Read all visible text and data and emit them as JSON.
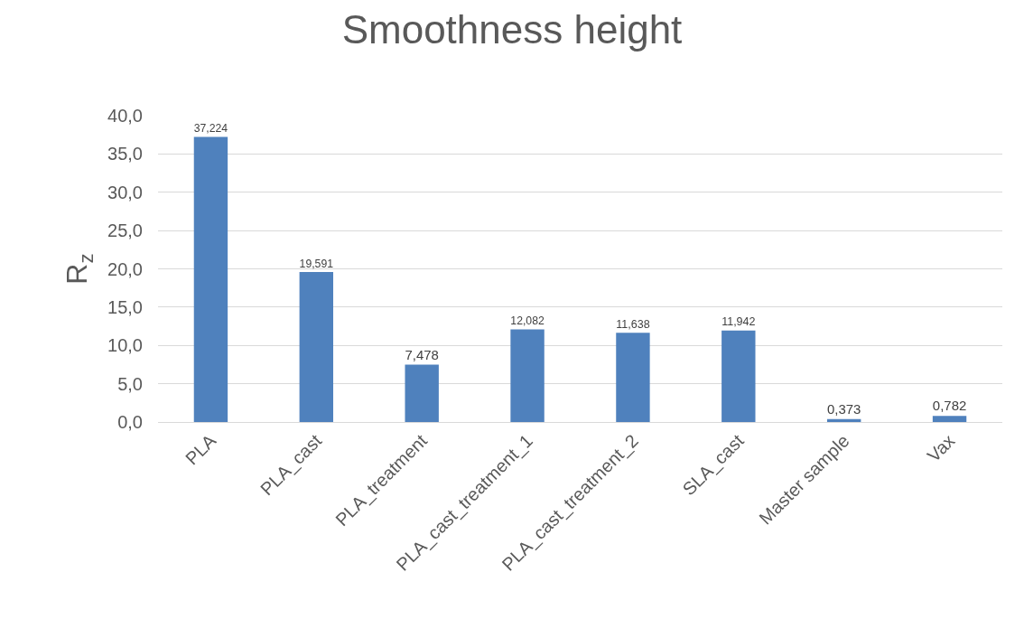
{
  "chart_data": {
    "type": "bar",
    "title": "Smoothness height",
    "ylabel": "R$_{z}$",
    "categories": [
      "PLA",
      "PLA_cast",
      "PLA_treatment",
      "PLA_cast_treatment_1",
      "PLA_cast_treatment_2",
      "SLA_cast",
      "Master sample",
      "Vax"
    ],
    "values": [
      37.224,
      19.591,
      7.478,
      12.082,
      11.638,
      11.942,
      0.373,
      0.782
    ],
    "value_labels": [
      "37,224",
      "19,591",
      "7,478",
      "12,082",
      "11,638",
      "11,942",
      "0,373",
      "0,782"
    ],
    "color": "#4f81bd",
    "ylim": [
      0,
      40
    ],
    "yticks": [
      {
        "value": 0,
        "label": "0,0"
      },
      {
        "value": 5,
        "label": "5,0"
      },
      {
        "value": 10,
        "label": "10,0"
      },
      {
        "value": 15,
        "label": "15,0"
      },
      {
        "value": 20,
        "label": "20,0"
      },
      {
        "value": 25,
        "label": "25,0"
      },
      {
        "value": 30,
        "label": "30,0"
      },
      {
        "value": 35,
        "label": "35,0"
      },
      {
        "value": 40,
        "label": "40,0"
      }
    ],
    "grid": "y",
    "legend": false
  }
}
